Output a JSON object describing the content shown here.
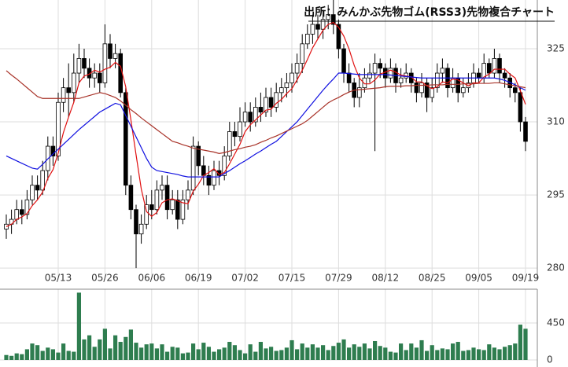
{
  "chart_data": {
    "type": "candlestick",
    "title": "出所：みんかぶ先物ゴム(RSS3)先物複合チャート",
    "categories": [
      null,
      null,
      null,
      null,
      null,
      null,
      null,
      null,
      null,
      null,
      "05/13",
      null,
      null,
      null,
      null,
      null,
      null,
      null,
      null,
      "05/26",
      null,
      null,
      null,
      null,
      null,
      null,
      null,
      null,
      "06/06",
      null,
      null,
      null,
      null,
      null,
      null,
      null,
      null,
      "06/19",
      null,
      null,
      null,
      null,
      null,
      null,
      null,
      null,
      "07/02",
      null,
      null,
      null,
      null,
      null,
      null,
      null,
      null,
      "07/15",
      null,
      null,
      null,
      null,
      null,
      null,
      null,
      null,
      "07/29",
      null,
      null,
      null,
      null,
      null,
      null,
      null,
      null,
      "08/12",
      null,
      null,
      null,
      null,
      null,
      null,
      null,
      null,
      "08/25",
      null,
      null,
      null,
      null,
      null,
      null,
      null,
      null,
      "09/05",
      null,
      null,
      null,
      null,
      null,
      null,
      null,
      null,
      "09/19"
    ],
    "open": [
      288,
      289,
      290,
      292,
      291,
      294,
      297,
      296,
      300,
      305,
      303,
      314,
      317,
      316,
      320,
      323,
      321,
      319,
      320,
      318,
      326,
      323,
      324,
      316,
      297,
      292,
      287,
      289,
      293,
      292,
      296,
      297,
      292,
      294,
      290,
      294,
      296,
      305,
      301,
      299,
      297,
      300,
      299,
      303,
      308,
      307,
      310,
      312,
      310,
      313,
      312,
      315,
      313,
      316,
      317,
      318,
      320,
      322,
      326,
      328,
      330,
      329,
      331,
      332,
      330,
      325,
      320,
      318,
      315,
      317,
      319,
      320,
      322,
      321,
      319,
      321,
      318,
      319,
      320,
      318,
      316,
      318,
      315,
      317,
      320,
      321,
      317,
      319,
      316,
      317,
      318,
      320,
      319,
      322,
      320,
      323,
      320,
      319,
      317,
      316,
      310
    ],
    "high": [
      291,
      292,
      294,
      294,
      296,
      299,
      299,
      302,
      307,
      307,
      316,
      319,
      322,
      324,
      326,
      325,
      323,
      322,
      322,
      330,
      328,
      326,
      325,
      317,
      299,
      293,
      291,
      295,
      296,
      298,
      299,
      299,
      296,
      296,
      296,
      298,
      307,
      306,
      303,
      301,
      302,
      302,
      305,
      310,
      310,
      313,
      314,
      314,
      315,
      316,
      317,
      317,
      318,
      319,
      320,
      322,
      324,
      328,
      330,
      332,
      332,
      333,
      334,
      335,
      331,
      326,
      322,
      319,
      320,
      321,
      322,
      324,
      323,
      322,
      323,
      322,
      321,
      322,
      321,
      319,
      320,
      319,
      319,
      322,
      323,
      322,
      321,
      320,
      319,
      320,
      322,
      321,
      324,
      323,
      325,
      324,
      321,
      320,
      318,
      317,
      311
    ],
    "low": [
      286,
      287,
      289,
      289,
      290,
      293,
      294,
      295,
      298,
      301,
      302,
      312,
      311,
      314,
      318,
      319,
      317,
      317,
      316,
      317,
      321,
      321,
      315,
      295,
      290,
      280,
      285,
      288,
      290,
      291,
      294,
      290,
      291,
      288,
      289,
      292,
      295,
      299,
      297,
      295,
      296,
      297,
      298,
      302,
      305,
      306,
      309,
      308,
      309,
      310,
      311,
      311,
      312,
      314,
      315,
      316,
      318,
      320,
      325,
      326,
      327,
      327,
      329,
      328,
      323,
      318,
      316,
      313,
      313,
      316,
      318,
      304,
      319,
      317,
      318,
      316,
      317,
      318,
      316,
      314,
      315,
      312,
      314,
      316,
      318,
      315,
      316,
      314,
      315,
      316,
      317,
      318,
      318,
      319,
      319,
      318,
      317,
      315,
      314,
      308,
      304
    ],
    "close": [
      289,
      290,
      292,
      291,
      294,
      297,
      296,
      300,
      305,
      303,
      314,
      317,
      316,
      320,
      323,
      321,
      319,
      320,
      318,
      326,
      323,
      324,
      316,
      297,
      292,
      287,
      289,
      293,
      292,
      296,
      297,
      292,
      294,
      290,
      294,
      296,
      305,
      301,
      299,
      297,
      300,
      299,
      303,
      308,
      307,
      310,
      312,
      310,
      313,
      312,
      315,
      313,
      316,
      317,
      318,
      320,
      322,
      326,
      328,
      330,
      329,
      331,
      332,
      330,
      325,
      320,
      318,
      315,
      317,
      319,
      320,
      322,
      321,
      319,
      321,
      318,
      319,
      320,
      318,
      316,
      318,
      315,
      317,
      320,
      321,
      317,
      319,
      316,
      317,
      318,
      320,
      319,
      322,
      320,
      323,
      320,
      319,
      317,
      316,
      310,
      306
    ],
    "series": [
      {
        "color": "#e01010",
        "values": [
          288.5,
          289,
          290,
          290.5,
          291.2,
          292.8,
          294,
          295.6,
          298.4,
          300.2,
          303.6,
          307.8,
          311,
          314,
          318,
          319.4,
          319.8,
          320.6,
          320.2,
          320.8,
          321.2,
          322.2,
          321.4,
          317.2,
          310.4,
          303.2,
          296.2,
          291.6,
          290.6,
          291.4,
          293.4,
          294,
          294.2,
          293.8,
          293.4,
          293.2,
          295.8,
          297.2,
          299,
          299.6,
          300.4,
          299.2,
          299.6,
          301.4,
          303.4,
          305.4,
          308,
          309.4,
          310.4,
          311.4,
          312.4,
          312.6,
          313.8,
          314.6,
          315.8,
          316.8,
          318.6,
          320.6,
          322.8,
          325.2,
          327,
          328.8,
          330,
          330.4,
          329.4,
          327.6,
          325,
          321.6,
          319,
          317.8,
          317.8,
          318.6,
          319.8,
          320.2,
          320.6,
          320.2,
          319.6,
          319.4,
          319.2,
          318.2,
          318.2,
          317.4,
          316.8,
          317.2,
          318.2,
          318,
          318.8,
          318.6,
          318,
          317.4,
          318,
          318,
          319.2,
          319.8,
          320.8,
          320.8,
          320.8,
          319.8,
          319,
          316.4,
          313.6
        ]
      },
      {
        "color": "#1010e0",
        "values": [
          303,
          302.5,
          302,
          301.5,
          301,
          300.5,
          300.3,
          301.3,
          302.4,
          303.4,
          304.4,
          305.4,
          306.4,
          307.4,
          308.4,
          309.3,
          310.2,
          311.1,
          312,
          312.6,
          313.2,
          313.8,
          313.5,
          311.3,
          309.1,
          306.9,
          304.7,
          302.5,
          300.7,
          300,
          299.8,
          299.6,
          299.4,
          299.2,
          298.9,
          298.7,
          298.7,
          298.7,
          298.7,
          298.7,
          298.7,
          298.7,
          299.4,
          300,
          300.7,
          301.4,
          302,
          302.7,
          303.4,
          304,
          304.7,
          305.4,
          306,
          307,
          308,
          309,
          310,
          311.3,
          312.6,
          313.9,
          315.2,
          316.5,
          317.7,
          318.8,
          320,
          320,
          319.9,
          319.8,
          319.7,
          319.7,
          319.7,
          319.7,
          319.7,
          319.7,
          319.6,
          319.5,
          319.4,
          319.3,
          319.2,
          319.1,
          319,
          319,
          319,
          319,
          319,
          319,
          319,
          319,
          319,
          319,
          319,
          319,
          319,
          319,
          319,
          318.8,
          318.5,
          318.1,
          317.6,
          317,
          316.5
        ]
      },
      {
        "color": "#a83228",
        "values": [
          320.5,
          319.6,
          318.8,
          317.9,
          317,
          316.1,
          315.2,
          314.8,
          314.8,
          314.8,
          314.8,
          314.8,
          314.8,
          314.8,
          314.8,
          315.1,
          315.4,
          315.7,
          316,
          315.8,
          315.4,
          315,
          314.3,
          313.4,
          312.5,
          311.7,
          310.8,
          310,
          309.2,
          308.4,
          307.6,
          306.8,
          306,
          305.7,
          305.3,
          305,
          304.6,
          304.4,
          304.2,
          304,
          303.8,
          303.5,
          303.7,
          304,
          304.3,
          304.5,
          304.8,
          305,
          305.3,
          305.8,
          306.2,
          306.7,
          307.1,
          307.6,
          308.1,
          308.6,
          309.1,
          309.6,
          310.3,
          311.2,
          312.1,
          313,
          313.9,
          314.5,
          315,
          315.6,
          316.1,
          316.5,
          316.6,
          316.7,
          316.8,
          316.9,
          317,
          317.2,
          317.3,
          317.3,
          317.3,
          317.4,
          317.4,
          317.5,
          317.5,
          317.5,
          317.6,
          317.6,
          317.6,
          317.7,
          317.7,
          317.7,
          317.8,
          317.8,
          317.8,
          317.9,
          317.9,
          317.9,
          318,
          318,
          317.8,
          317.6,
          317.4,
          317.2,
          317
        ]
      }
    ],
    "ylim": [
      277.6,
      335
    ],
    "yticks": [
      280,
      295,
      310,
      325
    ],
    "grid": true,
    "volume": {
      "color": "#2e7d4f",
      "ylim": [
        0,
        862
      ],
      "yticks": [
        0,
        450
      ],
      "values": [
        60,
        50,
        80,
        70,
        130,
        200,
        180,
        110,
        150,
        130,
        90,
        200,
        110,
        100,
        820,
        250,
        300,
        160,
        250,
        380,
        140,
        300,
        220,
        280,
        370,
        210,
        150,
        190,
        200,
        140,
        190,
        100,
        160,
        150,
        80,
        90,
        200,
        130,
        210,
        160,
        100,
        130,
        150,
        220,
        180,
        120,
        80,
        190,
        100,
        220,
        140,
        160,
        110,
        120,
        150,
        240,
        130,
        200,
        150,
        190,
        150,
        180,
        120,
        170,
        210,
        250,
        150,
        190,
        160,
        200,
        140,
        230,
        170,
        150,
        100,
        90,
        200,
        120,
        200,
        150,
        240,
        110,
        180,
        120,
        140,
        130,
        200,
        220,
        110,
        120,
        150,
        130,
        120,
        190,
        150,
        130,
        160,
        180,
        200,
        430,
        380
      ]
    }
  }
}
